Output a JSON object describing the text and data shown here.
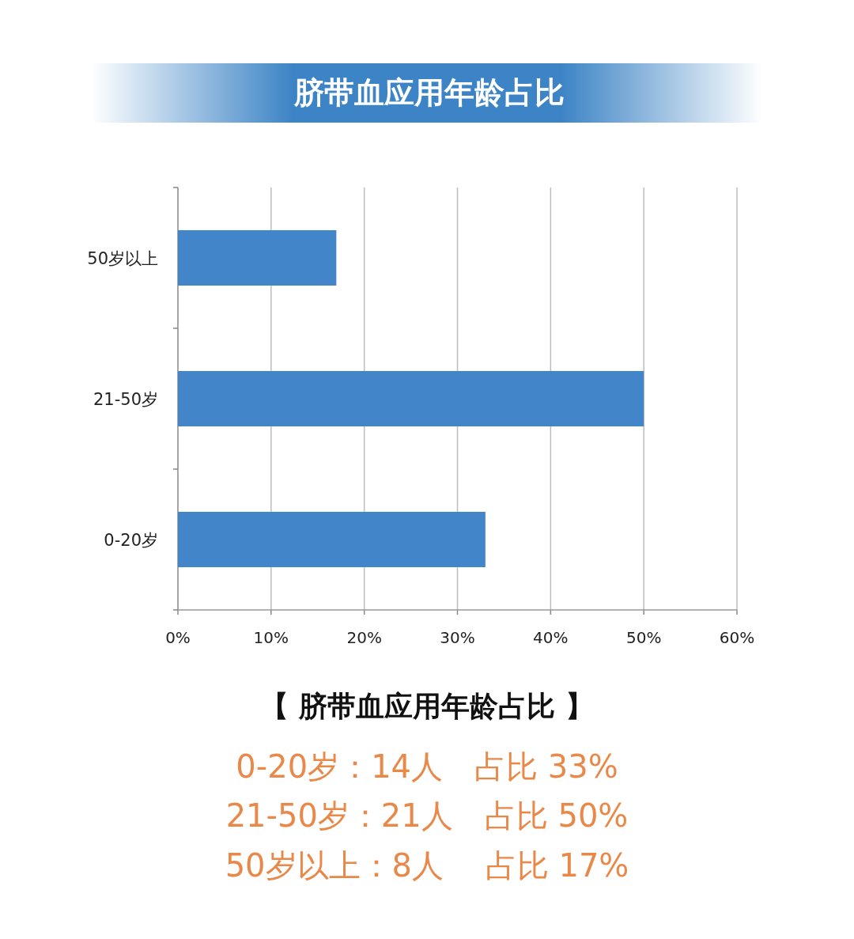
{
  "chart_data": {
    "type": "bar",
    "orientation": "horizontal",
    "title": "脐带血应用年龄占比",
    "categories": [
      "50岁以上",
      "21-50岁",
      "0-20岁"
    ],
    "values": [
      17,
      50,
      33
    ],
    "color": "#4285c8",
    "xlim": [
      0,
      60
    ],
    "xticks": [
      {
        "value": 0,
        "label": "0%"
      },
      {
        "value": 10,
        "label": "10%"
      },
      {
        "value": 20,
        "label": "20%"
      },
      {
        "value": 30,
        "label": "30%"
      },
      {
        "value": 40,
        "label": "40%"
      },
      {
        "value": 50,
        "label": "50%"
      },
      {
        "value": 60,
        "label": "60%"
      }
    ],
    "grid": "x",
    "annotations": [
      "【 脐带血应用年龄占比 】",
      "0-20岁：14人　占比 33%",
      "21-50岁：21人　占比 50%",
      "50岁以上：8人　 占比 17%"
    ]
  }
}
